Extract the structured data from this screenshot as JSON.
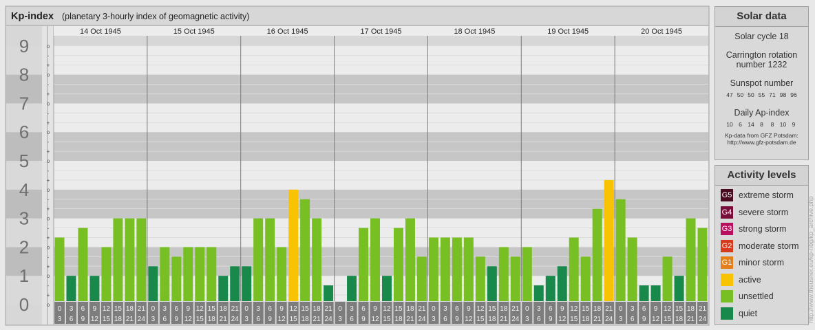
{
  "chart_data": {
    "type": "bar",
    "title": "Kp-index",
    "subtitle": "(planetary 3-hourly index of geomagnetic activity)",
    "ylim": [
      0,
      9
    ],
    "y_tick_labels": [
      "0",
      "1",
      "2",
      "3",
      "4",
      "5",
      "6",
      "7",
      "8",
      "9"
    ],
    "minor_tick_labels": [
      "+",
      "o",
      "-"
    ],
    "days": [
      "14 Oct 1945",
      "15 Oct 1945",
      "16 Oct 1945",
      "17 Oct 1945",
      "18 Oct 1945",
      "19 Oct 1945",
      "20 Oct 1945"
    ],
    "interval_labels": [
      [
        "0",
        "3"
      ],
      [
        "3",
        "6"
      ],
      [
        "6",
        "9"
      ],
      [
        "9",
        "12"
      ],
      [
        "12",
        "15"
      ],
      [
        "15",
        "18"
      ],
      [
        "18",
        "21"
      ],
      [
        "21",
        "24"
      ]
    ],
    "values": [
      [
        2.333,
        1.0,
        2.667,
        1.0,
        2.0,
        3.0,
        3.0,
        3.0
      ],
      [
        1.333,
        2.0,
        1.667,
        2.0,
        2.0,
        2.0,
        1.0,
        1.333
      ],
      [
        1.333,
        3.0,
        3.0,
        2.0,
        4.0,
        3.667,
        3.0,
        0.667
      ],
      [
        0.0,
        1.0,
        2.667,
        3.0,
        1.0,
        2.667,
        3.0,
        1.667
      ],
      [
        2.333,
        2.333,
        2.333,
        2.333,
        1.667,
        1.333,
        2.0,
        1.667
      ],
      [
        2.0,
        0.667,
        1.0,
        1.333,
        2.333,
        1.667,
        3.333,
        4.333
      ],
      [
        3.667,
        2.333,
        0.667,
        0.667,
        1.667,
        1.0,
        3.0,
        2.667
      ]
    ],
    "level_colors": {
      "quiet": "#18894a",
      "unsettled": "#77bf23",
      "active": "#f8c302"
    }
  },
  "solar": {
    "title": "Solar data",
    "cycle": "Solar cycle 18",
    "carrington_1": "Carrington rotation",
    "carrington_2": "number 1232",
    "sunspot_title": "Sunspot number",
    "sunspots": [
      "47",
      "50",
      "50",
      "55",
      "71",
      "98",
      "96"
    ],
    "ap_title": "Daily Ap-index",
    "ap": [
      "10",
      "6",
      "14",
      "8",
      "8",
      "10",
      "9"
    ],
    "credit_1": "Kp-data from GFZ Potsdam:",
    "credit_2": "http://www.gfz-potsdam.de"
  },
  "activity": {
    "title": "Activity levels",
    "levels": [
      {
        "code": "G5",
        "label": "extreme storm",
        "color": "#4a0b1f"
      },
      {
        "code": "G4",
        "label": "severe storm",
        "color": "#7a0c3a"
      },
      {
        "code": "G3",
        "label": "strong storm",
        "color": "#b80f5e"
      },
      {
        "code": "G2",
        "label": "moderate storm",
        "color": "#d53a1b"
      },
      {
        "code": "G1",
        "label": "minor storm",
        "color": "#e57f19"
      },
      {
        "code": "",
        "label": "active",
        "color": "#f8c302"
      },
      {
        "code": "",
        "label": "unsettled",
        "color": "#77bf23"
      },
      {
        "code": "",
        "label": "quiet",
        "color": "#18894a"
      }
    ]
  },
  "url_text": "http://www.theusner.eu/kp-nbg/kp_archive.php"
}
